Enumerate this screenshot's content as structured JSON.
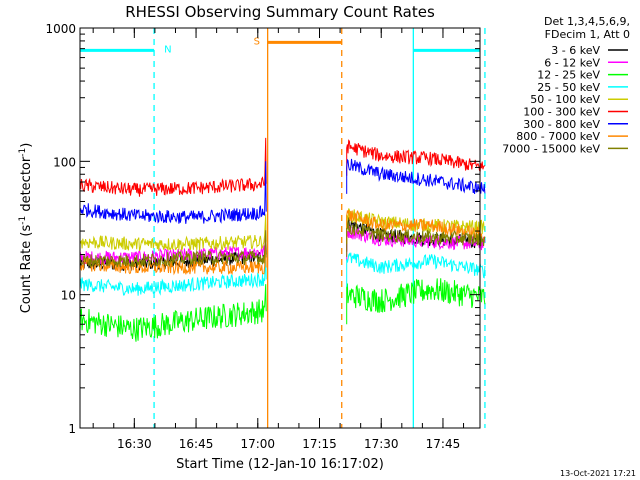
{
  "chart_data": {
    "type": "line",
    "title": "RHESSI Observing Summary Count Rates",
    "xlabel": "Start Time (12-Jan-10 16:17:02)",
    "ylabel": "Count Rate (s",
    "ylabel_sup1": "-1",
    "ylabel_mid": " detector",
    "ylabel_sup2": "-1",
    "ylabel_end": ")",
    "yscale": "log",
    "ylim": [
      1,
      1000
    ],
    "xlim": [
      16.28,
      17.9
    ],
    "y_ticks": [
      {
        "value": 1,
        "label": "1"
      },
      {
        "value": 10,
        "label": "10"
      },
      {
        "value": 100,
        "label": "100"
      },
      {
        "value": 1000,
        "label": "1000"
      }
    ],
    "x_ticks": [
      {
        "value": 16.5,
        "label": "16:30"
      },
      {
        "value": 16.75,
        "label": "16:45"
      },
      {
        "value": 17.0,
        "label": "17:00"
      },
      {
        "value": 17.25,
        "label": "17:15"
      },
      {
        "value": 17.5,
        "label": "17:30"
      },
      {
        "value": 17.75,
        "label": "17:45"
      }
    ],
    "legend_header": [
      "Det 1,3,4,5,6,9,",
      "FDecim 1, Att 0"
    ],
    "legend_position": "right",
    "footer": "13-Oct-2021 17:21",
    "flags": [
      {
        "label": "N",
        "color": "#00ffff",
        "start": 16.28,
        "end": 16.58,
        "level": 680
      },
      {
        "label": "S",
        "color": "#ff8800",
        "start": 17.04,
        "end": 17.34,
        "level": 780
      },
      {
        "label": "",
        "color": "#00ffff",
        "start": 17.63,
        "end": 17.92,
        "level": 680
      }
    ],
    "markers": [
      {
        "time": 16.58,
        "color": "#00ffff",
        "style": "dashed"
      },
      {
        "time": 17.04,
        "color": "#ff8800",
        "style": "solid"
      },
      {
        "time": 17.34,
        "color": "#ff8800",
        "style": "dashed"
      },
      {
        "time": 17.63,
        "color": "#00ffff",
        "style": "solid"
      },
      {
        "time": 17.92,
        "color": "#00ffff",
        "style": "dashed"
      }
    ],
    "series": [
      {
        "name": "3 - 6 keV",
        "color": "#000000",
        "seg1": {
          "x": [
            16.28,
            16.5,
            16.75,
            17.0,
            17.03
          ],
          "y": [
            17,
            17,
            18,
            19,
            20
          ]
        },
        "seg2": {
          "x": [
            17.36,
            17.5,
            17.7,
            17.92
          ],
          "y": [
            35,
            28,
            26,
            25
          ]
        }
      },
      {
        "name": "6 - 12 keV",
        "color": "#ff00ff",
        "seg1": {
          "x": [
            16.28,
            16.5,
            16.75,
            17.0,
            17.03
          ],
          "y": [
            19,
            19,
            20,
            21,
            21
          ]
        },
        "seg2": {
          "x": [
            17.36,
            17.5,
            17.7,
            17.92
          ],
          "y": [
            30,
            26,
            25,
            24
          ]
        }
      },
      {
        "name": "12 - 25 keV",
        "color": "#00ff00",
        "seg1": {
          "x": [
            16.28,
            16.5,
            16.75,
            17.0,
            17.03
          ],
          "y": [
            6.5,
            5.5,
            6.5,
            7.5,
            7.5
          ]
        },
        "seg2": {
          "x": [
            17.36,
            17.5,
            17.7,
            17.92
          ],
          "y": [
            10,
            9,
            11,
            9.5
          ]
        }
      },
      {
        "name": "25 - 50 keV",
        "color": "#00ffff",
        "seg1": {
          "x": [
            16.28,
            16.5,
            16.75,
            17.0,
            17.03
          ],
          "y": [
            12,
            11,
            12,
            13,
            13
          ]
        },
        "seg2": {
          "x": [
            17.36,
            17.5,
            17.7,
            17.92
          ],
          "y": [
            19,
            16,
            18,
            15
          ]
        }
      },
      {
        "name": "50 - 100 keV",
        "color": "#cccc00",
        "seg1": {
          "x": [
            16.28,
            16.5,
            16.75,
            17.0,
            17.03
          ],
          "y": [
            25,
            24,
            24,
            25,
            25
          ]
        },
        "seg2": {
          "x": [
            17.36,
            17.5,
            17.7,
            17.92
          ],
          "y": [
            40,
            35,
            33,
            32
          ]
        }
      },
      {
        "name": "100 - 300 keV",
        "color": "#ff0000",
        "seg1": {
          "x": [
            16.28,
            16.5,
            16.75,
            17.0,
            17.03
          ],
          "y": [
            66,
            61,
            63,
            67,
            68
          ]
        },
        "seg2": {
          "x": [
            17.36,
            17.5,
            17.7,
            17.92
          ],
          "y": [
            130,
            110,
            105,
            90
          ]
        }
      },
      {
        "name": "300 - 800 keV",
        "color": "#0000ff",
        "seg1": {
          "x": [
            16.28,
            16.5,
            16.75,
            17.0,
            17.03
          ],
          "y": [
            44,
            39,
            38,
            41,
            42
          ]
        },
        "seg2": {
          "x": [
            17.36,
            17.5,
            17.7,
            17.92
          ],
          "y": [
            95,
            80,
            72,
            62
          ]
        }
      },
      {
        "name": "800 - 7000 keV",
        "color": "#ff8800",
        "seg1": {
          "x": [
            16.28,
            16.5,
            16.75,
            17.0,
            17.03
          ],
          "y": [
            17,
            16,
            16,
            16,
            16
          ]
        },
        "seg2": {
          "x": [
            17.36,
            17.5,
            17.7,
            17.92
          ],
          "y": [
            40,
            33,
            33,
            28
          ]
        }
      },
      {
        "name": "7000 - 15000 keV",
        "color": "#808000",
        "seg1": {
          "x": [
            16.28,
            16.5,
            16.75,
            17.0,
            17.03
          ],
          "y": [
            18,
            18,
            19,
            19,
            19
          ]
        },
        "seg2": {
          "x": [
            17.36,
            17.5,
            17.7,
            17.92
          ],
          "y": [
            32,
            28,
            27,
            26
          ]
        }
      }
    ]
  }
}
